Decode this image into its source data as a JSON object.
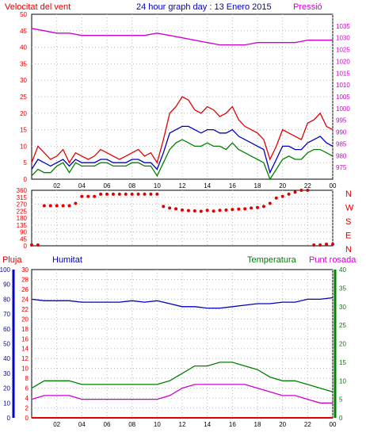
{
  "header": {
    "left": "Velocitat del vent",
    "center": "24 hour graph day : 13 Enero 2015",
    "right": "Pressió"
  },
  "colors": {
    "red": "#e00000",
    "blue": "#0000c0",
    "green": "#008000",
    "magenta": "#d000d0",
    "grid": "#b8b8b8",
    "yellow": "#ffd000"
  },
  "chart_data": [
    {
      "type": "line",
      "x_ticks": [
        "02",
        "04",
        "06",
        "08",
        "10",
        "12",
        "14",
        "16",
        "18",
        "20",
        "22",
        "00"
      ],
      "y_left": {
        "min": 0,
        "max": 50,
        "ticks": [
          0,
          5,
          10,
          15,
          20,
          25,
          30,
          35,
          40,
          45,
          50
        ]
      },
      "y_right": {
        "min": 970,
        "max": 1040,
        "ticks": [
          975,
          980,
          985,
          990,
          995,
          1000,
          1005,
          1010,
          1015,
          1020,
          1025,
          1030,
          1035
        ]
      },
      "series": [
        {
          "color": "red",
          "axis": "left",
          "x": [
            0,
            0.5,
            1,
            1.5,
            2,
            2.5,
            3,
            3.5,
            4,
            4.5,
            5,
            5.5,
            6,
            6.5,
            7,
            7.5,
            8,
            8.5,
            9,
            9.5,
            10,
            10.5,
            11,
            11.5,
            12,
            12.5,
            13,
            13.5,
            14,
            14.5,
            15,
            15.5,
            16,
            16.5,
            17,
            17.5,
            18,
            18.5,
            19,
            19.5,
            20,
            20.5,
            21,
            21.5,
            22,
            22.5,
            23,
            23.5,
            24
          ],
          "y": [
            5,
            10,
            8,
            6,
            7,
            9,
            5,
            8,
            7,
            6,
            7,
            9,
            8,
            7,
            6,
            7,
            8,
            9,
            7,
            8,
            5,
            12,
            20,
            22,
            25,
            24,
            21,
            20,
            22,
            21,
            19,
            20,
            22,
            18,
            16,
            15,
            14,
            12,
            6,
            10,
            15,
            14,
            13,
            12,
            17,
            18,
            20,
            16,
            15
          ]
        },
        {
          "color": "blue",
          "axis": "left",
          "x": [
            0,
            0.5,
            1,
            1.5,
            2,
            2.5,
            3,
            3.5,
            4,
            4.5,
            5,
            5.5,
            6,
            6.5,
            7,
            7.5,
            8,
            8.5,
            9,
            9.5,
            10,
            10.5,
            11,
            11.5,
            12,
            12.5,
            13,
            13.5,
            14,
            14.5,
            15,
            15.5,
            16,
            16.5,
            17,
            17.5,
            18,
            18.5,
            19,
            19.5,
            20,
            20.5,
            21,
            21.5,
            22,
            22.5,
            23,
            23.5,
            24
          ],
          "y": [
            3,
            6,
            5,
            4,
            5,
            6,
            4,
            6,
            5,
            5,
            5,
            6,
            6,
            5,
            5,
            5,
            6,
            6,
            5,
            5,
            3,
            8,
            14,
            15,
            16,
            16,
            15,
            14,
            15,
            15,
            14,
            14,
            15,
            13,
            12,
            11,
            10,
            9,
            2,
            6,
            10,
            10,
            9,
            9,
            11,
            12,
            13,
            11,
            10
          ]
        },
        {
          "color": "green",
          "axis": "left",
          "x": [
            0,
            0.5,
            1,
            1.5,
            2,
            2.5,
            3,
            3.5,
            4,
            4.5,
            5,
            5.5,
            6,
            6.5,
            7,
            7.5,
            8,
            8.5,
            9,
            9.5,
            10,
            10.5,
            11,
            11.5,
            12,
            12.5,
            13,
            13.5,
            14,
            14.5,
            15,
            15.5,
            16,
            16.5,
            17,
            17.5,
            18,
            18.5,
            19,
            19.5,
            20,
            20.5,
            21,
            21.5,
            22,
            22.5,
            23,
            23.5,
            24
          ],
          "y": [
            1,
            3,
            2,
            2,
            4,
            5,
            2,
            5,
            4,
            4,
            4,
            5,
            5,
            4,
            4,
            4,
            5,
            5,
            4,
            4,
            1,
            5,
            9,
            11,
            12,
            11,
            10,
            10,
            11,
            10,
            10,
            9,
            11,
            9,
            8,
            7,
            6,
            5,
            0,
            3,
            6,
            7,
            6,
            6,
            8,
            9,
            9,
            8,
            7
          ]
        },
        {
          "color": "magenta",
          "axis": "right",
          "x": [
            0,
            1,
            2,
            3,
            4,
            5,
            6,
            7,
            8,
            9,
            10,
            11,
            12,
            13,
            14,
            15,
            16,
            17,
            18,
            19,
            20,
            21,
            22,
            23,
            24
          ],
          "y": [
            1034,
            1033,
            1032,
            1032,
            1031,
            1031,
            1031,
            1031,
            1031,
            1031,
            1032,
            1031,
            1030,
            1029,
            1028,
            1027,
            1027,
            1027,
            1028,
            1028,
            1028,
            1028,
            1029,
            1029,
            1029
          ]
        }
      ]
    },
    {
      "type": "scatter",
      "y_ticks": [
        0,
        45,
        90,
        135,
        180,
        225,
        270,
        315,
        360
      ],
      "y_range": [
        0,
        360
      ],
      "right_labels": [
        "N",
        "W",
        "S",
        "E",
        "N"
      ],
      "series": [
        {
          "color": "red",
          "x": [
            0,
            0.5,
            1,
            1.5,
            2,
            2.5,
            3,
            3.5,
            4,
            4.5,
            5,
            5.5,
            6,
            6.5,
            7,
            7.5,
            8,
            8.5,
            9,
            9.5,
            10,
            10.5,
            11,
            11.5,
            12,
            12.5,
            13,
            13.5,
            14,
            14.5,
            15,
            15.5,
            16,
            16.5,
            17,
            17.5,
            18,
            18.5,
            19,
            19.5,
            20,
            20.5,
            21,
            21.5,
            22,
            22.5,
            23,
            23.5,
            24
          ],
          "y": [
            5,
            5,
            260,
            260,
            260,
            260,
            260,
            275,
            320,
            320,
            320,
            335,
            335,
            335,
            335,
            335,
            335,
            335,
            335,
            335,
            335,
            255,
            245,
            240,
            232,
            228,
            226,
            224,
            230,
            225,
            230,
            232,
            235,
            238,
            240,
            245,
            248,
            255,
            275,
            310,
            320,
            335,
            348,
            360,
            360,
            5,
            5,
            10,
            10
          ]
        }
      ]
    },
    {
      "type": "line",
      "legend": [
        "Pluja",
        "Humitat",
        "Temperatura",
        "Punt rosada"
      ],
      "x_ticks": [
        "02",
        "04",
        "06",
        "08",
        "10",
        "12",
        "14",
        "16",
        "18",
        "20",
        "22",
        "00"
      ],
      "y_axis_blue": {
        "min": 0,
        "max": 100,
        "ticks": [
          0,
          10,
          20,
          30,
          40,
          50,
          60,
          70,
          80,
          90,
          100
        ]
      },
      "y_axis_red": {
        "min": 0,
        "max": 30,
        "ticks": [
          0,
          2,
          4,
          6,
          8,
          10,
          12,
          14,
          16,
          18,
          20,
          22,
          24,
          26,
          28,
          30
        ]
      },
      "y_axis_right": {
        "min": 0,
        "max": 40,
        "ticks": [
          0,
          5,
          10,
          15,
          20,
          25,
          30,
          35,
          40
        ]
      },
      "series": [
        {
          "name": "Humitat",
          "color": "blue",
          "x": [
            0,
            1,
            2,
            3,
            4,
            5,
            6,
            7,
            8,
            9,
            10,
            11,
            12,
            13,
            14,
            15,
            16,
            17,
            18,
            19,
            20,
            21,
            22,
            23,
            24
          ],
          "y": [
            80,
            79,
            79,
            79,
            78,
            78,
            78,
            78,
            79,
            78,
            79,
            77,
            75,
            75,
            74,
            74,
            75,
            76,
            77,
            77,
            78,
            78,
            80,
            80,
            81
          ]
        },
        {
          "name": "Temperatura",
          "color": "green",
          "x": [
            0,
            1,
            2,
            3,
            4,
            5,
            6,
            7,
            8,
            9,
            10,
            11,
            12,
            13,
            14,
            15,
            16,
            17,
            18,
            19,
            20,
            21,
            22,
            23,
            24
          ],
          "y": [
            8,
            10,
            10,
            10,
            9,
            9,
            9,
            9,
            9,
            9,
            9,
            10,
            12,
            14,
            14,
            15,
            15,
            14,
            13,
            11,
            10,
            10,
            9,
            8,
            7
          ]
        },
        {
          "name": "Punt rosada",
          "color": "magenta",
          "x": [
            0,
            1,
            2,
            3,
            4,
            5,
            6,
            7,
            8,
            9,
            10,
            11,
            12,
            13,
            14,
            15,
            16,
            17,
            18,
            19,
            20,
            21,
            22,
            23,
            24
          ],
          "y": [
            5,
            6,
            6,
            6,
            5,
            5,
            5,
            5,
            5,
            5,
            5,
            6,
            8,
            9,
            9,
            9,
            9,
            9,
            8,
            7,
            6,
            6,
            5,
            4,
            4
          ]
        },
        {
          "name": "Pluja",
          "color": "red",
          "x": [
            0,
            24
          ],
          "y": [
            0,
            0
          ]
        }
      ]
    }
  ]
}
